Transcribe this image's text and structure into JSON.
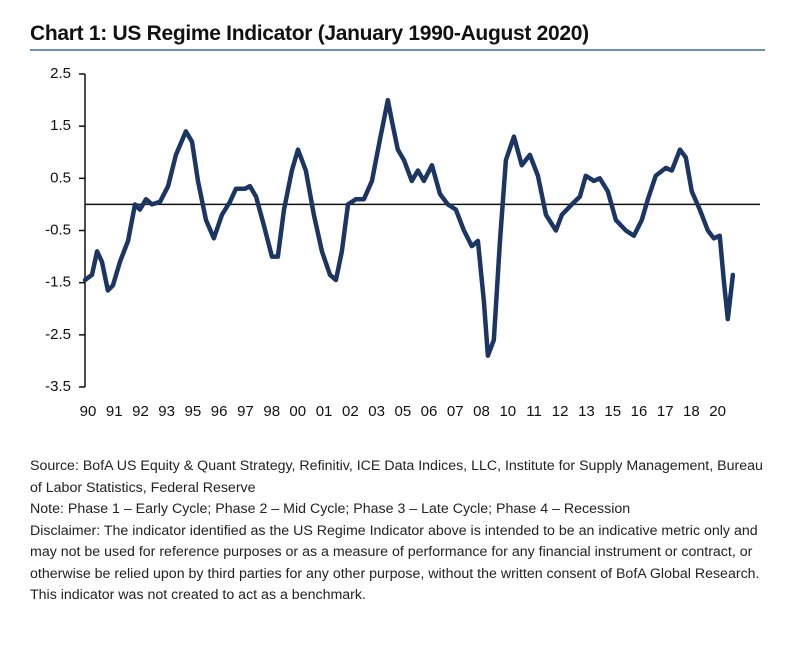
{
  "chart_data": {
    "type": "line",
    "title": "Chart 1: US Regime Indicator (January 1990-August 2020)",
    "color": "#1c3664",
    "x": [
      1990.0,
      1990.33,
      1990.57,
      1990.8,
      1991.08,
      1991.32,
      1991.65,
      1992.03,
      1992.36,
      1992.59,
      1992.88,
      1993.16,
      1993.54,
      1993.92,
      1994.29,
      1994.76,
      1995.05,
      1995.33,
      1995.71,
      1996.08,
      1996.46,
      1996.84,
      1997.12,
      1997.55,
      1997.78,
      1998.07,
      1998.44,
      1998.82,
      1999.1,
      1999.39,
      1999.76,
      2000.05,
      2000.42,
      2000.8,
      2001.18,
      2001.56,
      2001.84,
      2002.12,
      2002.41,
      2002.78,
      2003.16,
      2003.54,
      2003.92,
      2004.29,
      2004.48,
      2004.76,
      2005.05,
      2005.42,
      2005.71,
      2005.99,
      2006.37,
      2006.75,
      2007.12,
      2007.5,
      2007.88,
      2008.25,
      2008.54,
      2008.82,
      2009.01,
      2009.29,
      2009.58,
      2009.86,
      2010.24,
      2010.61,
      2010.99,
      2011.37,
      2011.75,
      2012.22,
      2012.5,
      2012.97,
      2013.35,
      2013.63,
      2014.01,
      2014.29,
      2014.67,
      2015.05,
      2015.52,
      2015.9,
      2016.27,
      2016.56,
      2016.93,
      2017.41,
      2017.69,
      2018.07,
      2018.35,
      2018.63,
      2019.01,
      2019.39,
      2019.67,
      2019.95,
      2020.14,
      2020.33,
      2020.57
    ],
    "values": [
      -1.45,
      -1.35,
      -0.9,
      -1.1,
      -1.65,
      -1.55,
      -1.1,
      -0.7,
      0,
      -0.1,
      0.1,
      0,
      0.05,
      0.35,
      0.95,
      1.4,
      1.2,
      0.45,
      -0.3,
      -0.65,
      -0.2,
      0.05,
      0.3,
      0.3,
      0.35,
      0.15,
      -0.4,
      -1.0,
      -1.0,
      -0.1,
      0.65,
      1.05,
      0.65,
      -0.2,
      -0.9,
      -1.35,
      -1.45,
      -0.9,
      0,
      0.1,
      0.1,
      0.45,
      1.25,
      2.0,
      1.6,
      1.05,
      0.85,
      0.45,
      0.65,
      0.45,
      0.75,
      0.2,
      0,
      -0.1,
      -0.5,
      -0.8,
      -0.7,
      -1.85,
      -2.9,
      -2.6,
      -0.7,
      0.85,
      1.3,
      0.75,
      0.95,
      0.55,
      -0.2,
      -0.5,
      -0.2,
      0,
      0.15,
      0.55,
      0.45,
      0.5,
      0.25,
      -0.3,
      -0.5,
      -0.6,
      -0.3,
      0.1,
      0.55,
      0.7,
      0.65,
      1.05,
      0.9,
      0.25,
      -0.1,
      -0.5,
      -0.65,
      -0.6,
      -1.45,
      -2.2,
      -1.35
    ],
    "xlim": [
      1990.0,
      2020.67
    ],
    "xticks": [
      {
        "value": 1990.14,
        "label": "90"
      },
      {
        "value": 1991.38,
        "label": "91"
      },
      {
        "value": 1992.62,
        "label": "92"
      },
      {
        "value": 1993.85,
        "label": "93"
      },
      {
        "value": 1995.09,
        "label": "95"
      },
      {
        "value": 1996.33,
        "label": "96"
      },
      {
        "value": 1997.57,
        "label": "97"
      },
      {
        "value": 1998.81,
        "label": "98"
      },
      {
        "value": 2000.04,
        "label": "00"
      },
      {
        "value": 2001.28,
        "label": "01"
      },
      {
        "value": 2002.52,
        "label": "02"
      },
      {
        "value": 2003.76,
        "label": "03"
      },
      {
        "value": 2005.0,
        "label": "05"
      },
      {
        "value": 2006.23,
        "label": "06"
      },
      {
        "value": 2007.47,
        "label": "07"
      },
      {
        "value": 2008.71,
        "label": "08"
      },
      {
        "value": 2009.95,
        "label": "10"
      },
      {
        "value": 2011.19,
        "label": "11"
      },
      {
        "value": 2012.42,
        "label": "12"
      },
      {
        "value": 2013.66,
        "label": "13"
      },
      {
        "value": 2014.9,
        "label": "15"
      },
      {
        "value": 2016.14,
        "label": "16"
      },
      {
        "value": 2017.38,
        "label": "17"
      },
      {
        "value": 2018.61,
        "label": "18"
      },
      {
        "value": 2019.85,
        "label": "20"
      }
    ],
    "ylim": [
      -3.5,
      2.5
    ],
    "yticks": [
      2.5,
      1.5,
      0.5,
      -0.5,
      -1.5,
      -2.5,
      -3.5
    ],
    "grid": false
  },
  "notes": {
    "source": "Source: BofA US Equity & Quant Strategy, Refinitiv, ICE Data Indices, LLC, Institute for Supply Management, Bureau of Labor Statistics, Federal Reserve",
    "note": "Note: Phase 1 – Early Cycle; Phase 2 – Mid Cycle; Phase 3 – Late Cycle; Phase 4 – Recession",
    "disclaimer": "Disclaimer: The indicator identified as the US Regime Indicator above is intended to be an indicative metric only and may not be used for reference purposes or as a measure of performance for any financial instrument or contract, or otherwise be relied upon by third parties for any other purpose, without the written consent of BofA Global Research. This indicator was not created to act as a benchmark."
  }
}
